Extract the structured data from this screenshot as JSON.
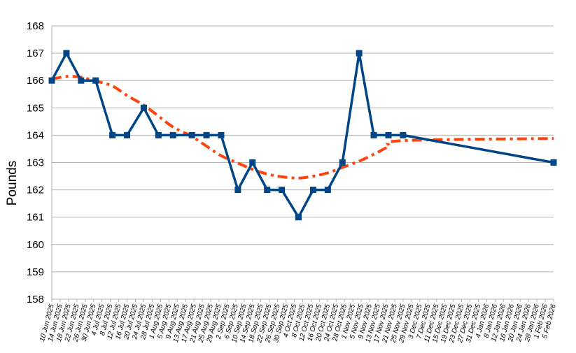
{
  "chart_data": {
    "type": "line",
    "ylabel": "Pounds",
    "ylim": [
      158,
      168
    ],
    "yticks": [
      158,
      159,
      160,
      161,
      162,
      163,
      164,
      165,
      166,
      167,
      168
    ],
    "grid": true,
    "x_start": "10 Jun 2025",
    "x_end": "5 Feb 2026",
    "xtick_labels": [
      "10 Jun 2025",
      "14 Jun 2025",
      "18 Jun 2025",
      "22 Jun 2025",
      "26 Jun 2025",
      "30 Jun 2025",
      "4 Jul 2025",
      "8 Jul 2025",
      "12 Jul 2025",
      "16 Jul 2025",
      "20 Jul 2025",
      "24 Jul 2025",
      "28 Jul 2025",
      "1 Aug 2025",
      "5 Aug 2025",
      "9 Aug 2025",
      "13 Aug 2025",
      "17 Aug 2025",
      "21 Aug 2025",
      "25 Aug 2025",
      "29 Aug 2025",
      "2 Sep 2025",
      "6 Sep 2025",
      "10 Sep 2025",
      "14 Sep 2025",
      "18 Sep 2025",
      "22 Sep 2025",
      "26 Sep 2025",
      "30 Sep 2025",
      "4 Oct 2025",
      "8 Oct 2025",
      "12 Oct 2025",
      "16 Oct 2025",
      "20 Oct 2025",
      "24 Oct 2025",
      "28 Oct 2025",
      "1 Nov 2025",
      "5 Nov 2025",
      "9 Nov 2025",
      "13 Nov 2025",
      "17 Nov 2025",
      "21 Nov 2025",
      "25 Nov 2025",
      "29 Nov 2025",
      "3 Dec 2025",
      "7 Dec 2025",
      "11 Dec 2025",
      "15 Dec 2025",
      "19 Dec 2025",
      "23 Dec 2025",
      "27 Dec 2025",
      "31 Dec 2025",
      "4 Jan 2026",
      "8 Jan 2026",
      "12 Jan 2026",
      "16 Jan 2026",
      "20 Jan 2026",
      "24 Jan 2026",
      "28 Jan 2026",
      "1 Feb 2026",
      "5 Feb 2026"
    ],
    "series": [
      {
        "color": "#004586",
        "marker": "square",
        "points": [
          {
            "x": "10 Jun 2025",
            "y": 166
          },
          {
            "x": "17 Jun 2025",
            "y": 167
          },
          {
            "x": "24 Jun 2025",
            "y": 166
          },
          {
            "x": "1 Jul 2025",
            "y": 166
          },
          {
            "x": "9 Jul 2025",
            "y": 164
          },
          {
            "x": "16 Jul 2025",
            "y": 164
          },
          {
            "x": "24 Jul 2025",
            "y": 165
          },
          {
            "x": "31 Jul 2025",
            "y": 164
          },
          {
            "x": "7 Aug 2025",
            "y": 164
          },
          {
            "x": "16 Aug 2025",
            "y": 164
          },
          {
            "x": "23 Aug 2025",
            "y": 164
          },
          {
            "x": "30 Aug 2025",
            "y": 164
          },
          {
            "x": "7 Sep 2025",
            "y": 162
          },
          {
            "x": "14 Sep 2025",
            "y": 163
          },
          {
            "x": "21 Sep 2025",
            "y": 162
          },
          {
            "x": "28 Sep 2025",
            "y": 162
          },
          {
            "x": "6 Oct 2025",
            "y": 161
          },
          {
            "x": "13 Oct 2025",
            "y": 162
          },
          {
            "x": "20 Oct 2025",
            "y": 162
          },
          {
            "x": "27 Oct 2025",
            "y": 163
          },
          {
            "x": "4 Nov 2025",
            "y": 167
          },
          {
            "x": "11 Nov 2025",
            "y": 164
          },
          {
            "x": "18 Nov 2025",
            "y": 164
          },
          {
            "x": "25 Nov 2025",
            "y": 164
          },
          {
            "x": "5 Feb 2026",
            "y": 163
          }
        ]
      },
      {
        "color": "#ff420e",
        "style": "dash-dot",
        "kind": "trend",
        "points": [
          {
            "x": "10 Jun 2025",
            "y": 166.05
          },
          {
            "x": "17 Jun 2025",
            "y": 166.15
          },
          {
            "x": "24 Jun 2025",
            "y": 166.12
          },
          {
            "x": "1 Jul 2025",
            "y": 165.98
          },
          {
            "x": "9 Jul 2025",
            "y": 165.8
          },
          {
            "x": "16 Jul 2025",
            "y": 165.45
          },
          {
            "x": "24 Jul 2025",
            "y": 165.1
          },
          {
            "x": "31 Jul 2025",
            "y": 164.7
          },
          {
            "x": "7 Aug 2025",
            "y": 164.3
          },
          {
            "x": "16 Aug 2025",
            "y": 163.95
          },
          {
            "x": "23 Aug 2025",
            "y": 163.6
          },
          {
            "x": "30 Aug 2025",
            "y": 163.25
          },
          {
            "x": "7 Sep 2025",
            "y": 162.98
          },
          {
            "x": "14 Sep 2025",
            "y": 162.75
          },
          {
            "x": "21 Sep 2025",
            "y": 162.58
          },
          {
            "x": "28 Sep 2025",
            "y": 162.48
          },
          {
            "x": "6 Oct 2025",
            "y": 162.43
          },
          {
            "x": "13 Oct 2025",
            "y": 162.5
          },
          {
            "x": "20 Oct 2025",
            "y": 162.62
          },
          {
            "x": "27 Oct 2025",
            "y": 162.82
          },
          {
            "x": "4 Nov 2025",
            "y": 163.05
          },
          {
            "x": "11 Nov 2025",
            "y": 163.3
          },
          {
            "x": "18 Nov 2025",
            "y": 163.58
          },
          {
            "x": "25 Nov 2025",
            "y": 163.8
          },
          {
            "x": "5 Feb 2026",
            "y": 163.88
          }
        ]
      }
    ]
  }
}
